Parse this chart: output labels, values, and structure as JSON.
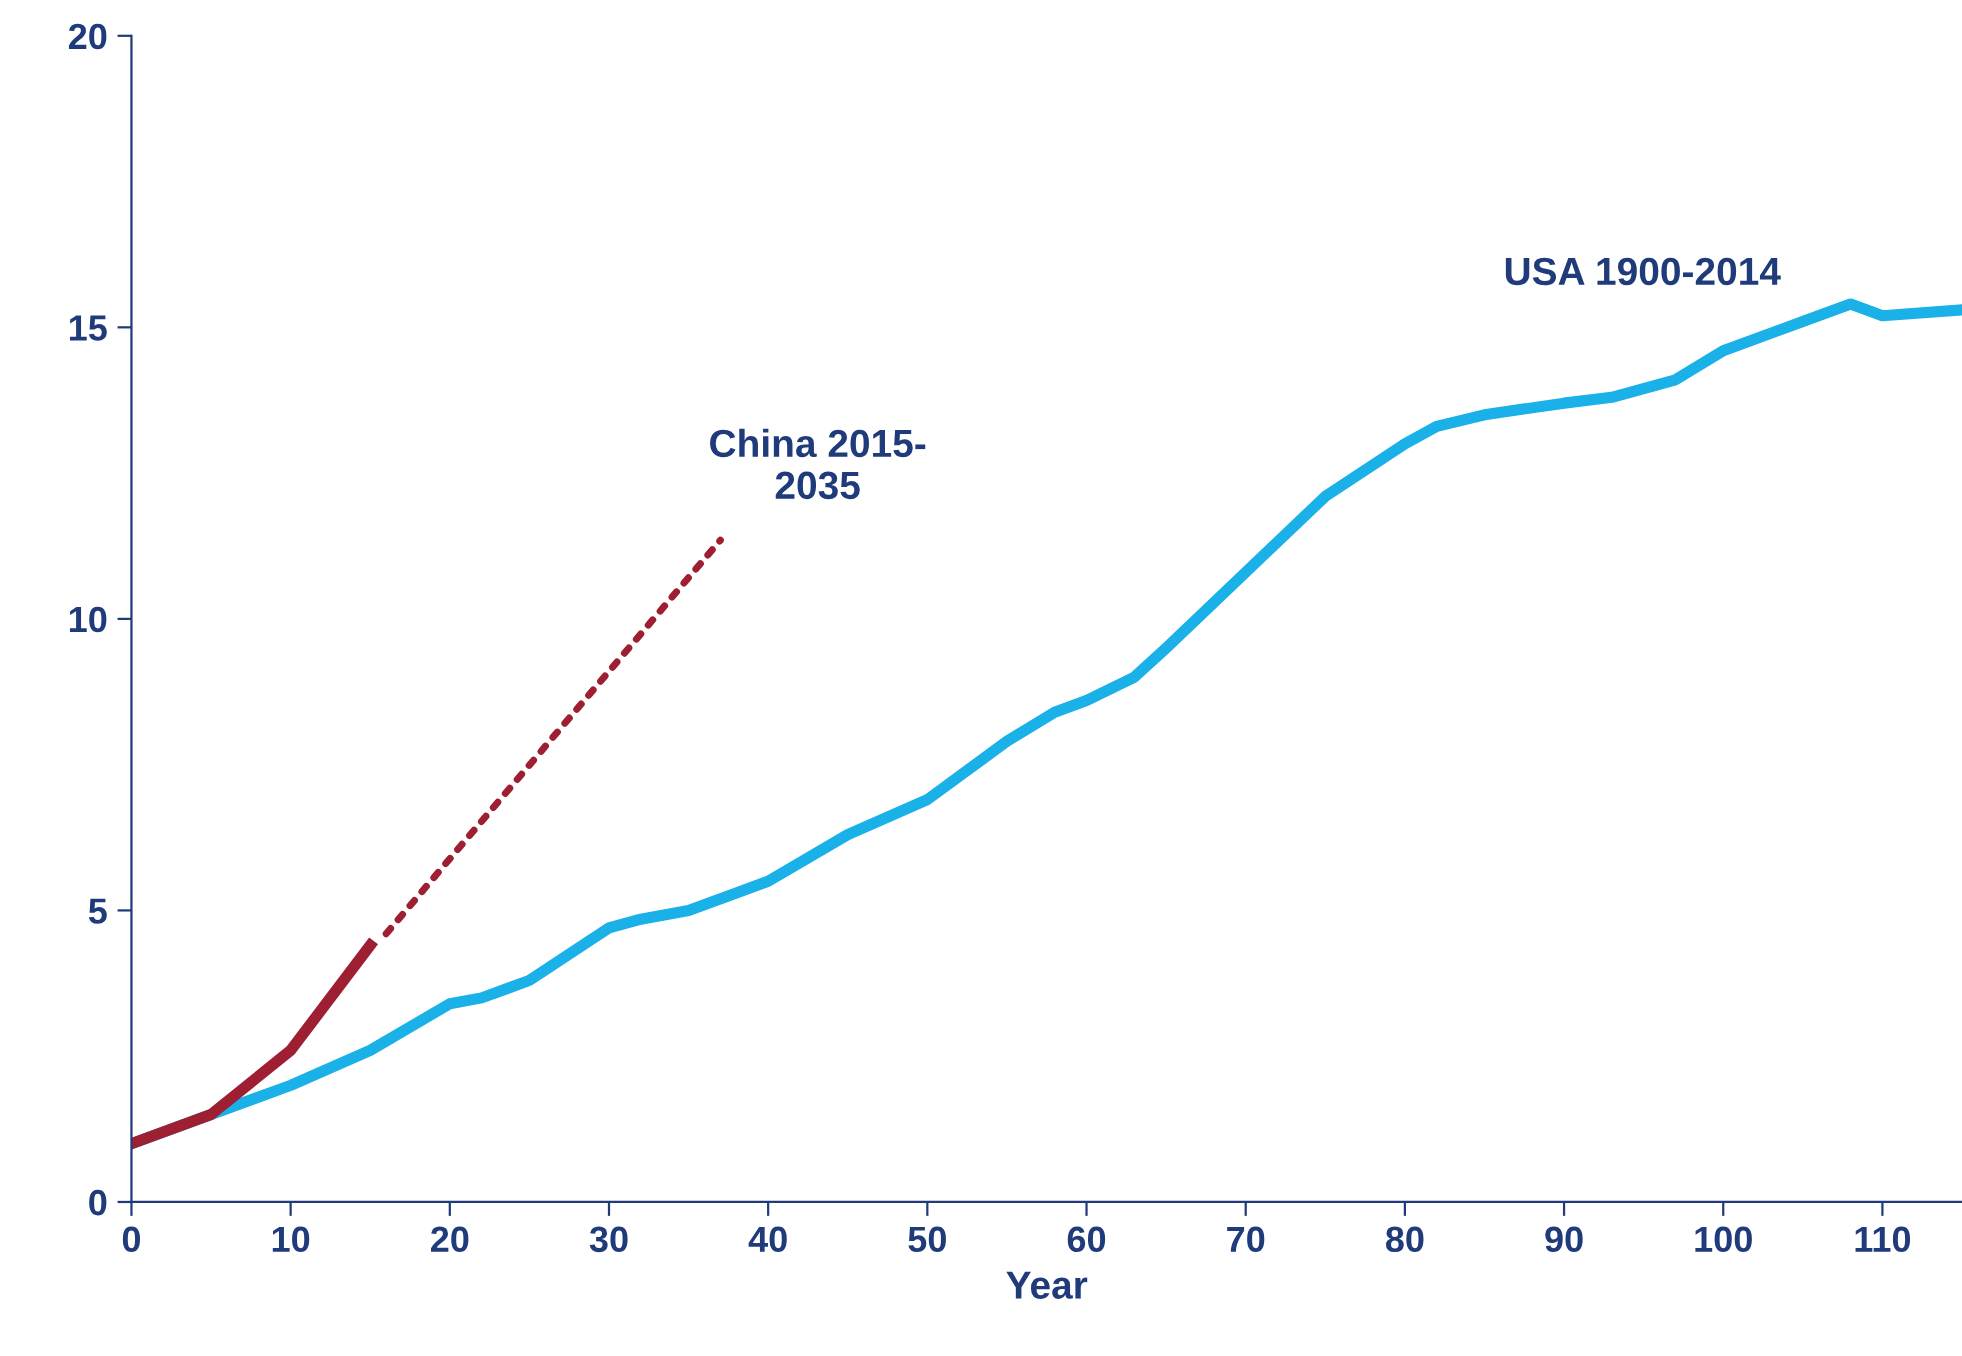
{
  "chart_data": {
    "type": "line",
    "xlabel": "Year",
    "xlim": [
      0,
      115
    ],
    "ylim": [
      0,
      20
    ],
    "xticks": [
      0,
      10,
      20,
      30,
      40,
      50,
      60,
      70,
      80,
      90,
      100,
      110
    ],
    "yticks": [
      0,
      5,
      10,
      15,
      20
    ],
    "grid": false,
    "legend": false,
    "series": [
      {
        "name": "USA 1900-2014",
        "color": "#1ab0e8",
        "line_style": "solid",
        "x": [
          0,
          5,
          10,
          15,
          20,
          22,
          25,
          30,
          32,
          35,
          38,
          40,
          45,
          50,
          55,
          58,
          60,
          63,
          65,
          70,
          75,
          80,
          82,
          85,
          90,
          93,
          97,
          100,
          105,
          108,
          110,
          115
        ],
        "values": [
          1.0,
          1.5,
          2.0,
          2.6,
          3.4,
          3.5,
          3.8,
          4.7,
          4.85,
          5.0,
          5.3,
          5.5,
          6.3,
          6.9,
          7.9,
          8.4,
          8.6,
          9.0,
          9.5,
          10.8,
          12.1,
          13.0,
          13.3,
          13.5,
          13.7,
          13.8,
          14.1,
          14.6,
          15.1,
          15.4,
          15.2,
          15.3
        ]
      },
      {
        "color": "#9e1f32",
        "line_style": "solid",
        "x": [
          0,
          5,
          10,
          15
        ],
        "values": [
          1.0,
          1.5,
          2.6,
          4.4
        ]
      },
      {
        "name": "China 2015-\n2035",
        "color": "#9e1f32",
        "line_style": "dotted",
        "x": [
          16,
          37
        ],
        "values": [
          4.6,
          11.35
        ]
      }
    ]
  }
}
